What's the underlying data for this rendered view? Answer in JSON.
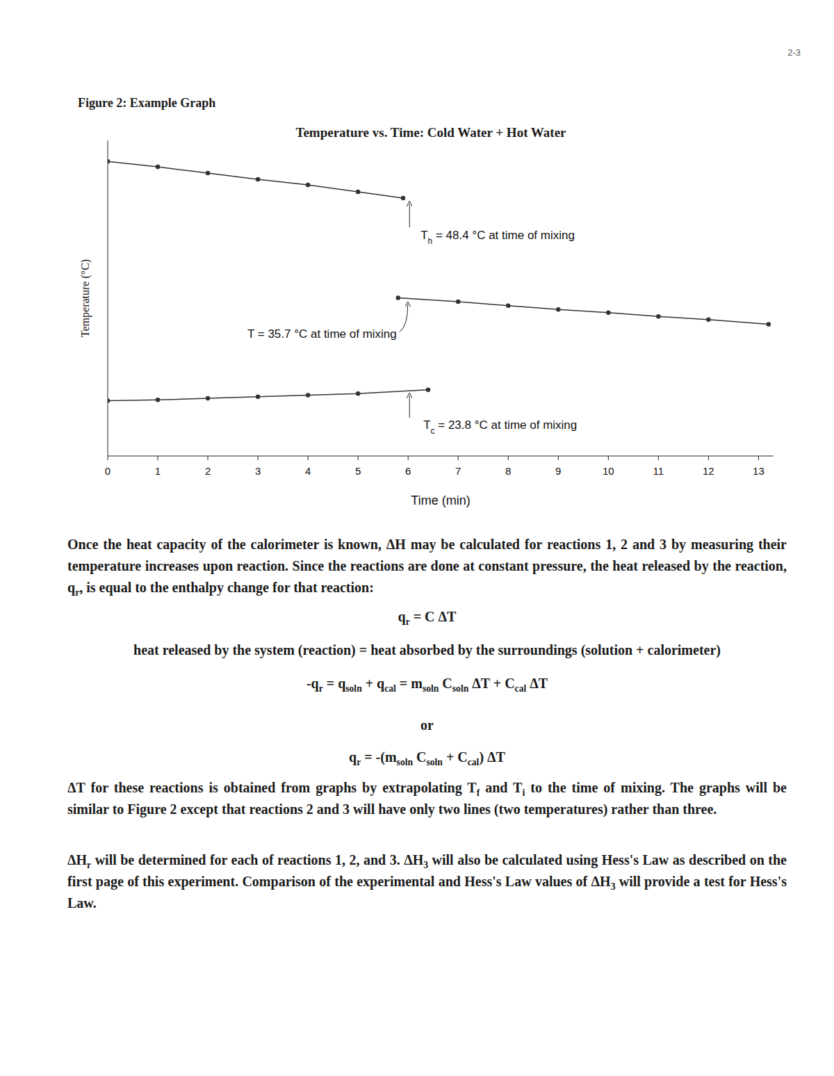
{
  "page_number": "2-3",
  "figure_caption": "Figure 2: Example Graph",
  "chart_data": {
    "type": "line",
    "title": "Temperature vs. Time: Cold Water + Hot Water",
    "x_label": "Time (min)",
    "y_label": "Temperature (°C)",
    "xlim": [
      0,
      13.3
    ],
    "xticks": [
      0,
      1,
      2,
      3,
      4,
      5,
      6,
      7,
      8,
      9,
      10,
      11,
      12,
      13
    ],
    "ylim": [
      15.5,
      56
    ],
    "tick_labels": "x",
    "grid": false,
    "color": "#333333",
    "marker": "circle",
    "series": [
      {
        "x": [
          0,
          1,
          2,
          3,
          4,
          5,
          5.9
        ],
        "values": [
          53.3,
          52.6,
          51.8,
          51.0,
          50.3,
          49.4,
          48.6
        ]
      },
      {
        "x": [
          5.8,
          7,
          8,
          9,
          10,
          11,
          12,
          13.2
        ],
        "values": [
          35.8,
          35.3,
          34.8,
          34.3,
          33.9,
          33.4,
          33.0,
          32.4
        ]
      },
      {
        "x": [
          0,
          1,
          2,
          3,
          4,
          5,
          6.4
        ],
        "values": [
          22.6,
          22.7,
          22.9,
          23.1,
          23.3,
          23.5,
          24.0
        ]
      }
    ],
    "annotations": [
      {
        "text": [
          "T",
          {
            "sub": "h"
          },
          " = 48.4 °C at time of mixing"
        ],
        "x": 6,
        "y": 48.4
      },
      {
        "text": [
          "T = 35.7 °C at time of mixing"
        ],
        "x": 5.8,
        "y": 35.7
      },
      {
        "text": [
          "T",
          {
            "sub": "c"
          },
          " = 23.8 °C at time of mixing"
        ],
        "x": 6,
        "y": 23.8
      }
    ]
  },
  "body": [
    {
      "kind": "paragraph",
      "text": [
        "Once the heat capacity of the calorimeter is known, ΔH may be calculated for reactions 1, 2 and 3 by measuring their temperature increases upon reaction. Since the reactions are done at constant pressure, the heat released by the reaction, q",
        {
          "sub": "r"
        },
        ", is equal to the enthalpy change for that reaction:"
      ]
    },
    {
      "kind": "equation",
      "text": [
        "q",
        {
          "sub": "r"
        },
        " = C ΔT"
      ]
    },
    {
      "kind": "equation",
      "text": [
        "heat released by the system (reaction) = heat absorbed by the surroundings (solution + calorimeter)"
      ]
    },
    {
      "kind": "equation",
      "text": [
        "-q",
        {
          "sub": "r"
        },
        " = q",
        {
          "sub": "soln"
        },
        " + q",
        {
          "sub": "cal"
        },
        " = m",
        {
          "sub": "soln"
        },
        " C",
        {
          "sub": "soln"
        },
        " ΔT + C",
        {
          "sub": "cal"
        },
        " ΔT"
      ]
    },
    {
      "kind": "equation",
      "text": [
        "or"
      ]
    },
    {
      "kind": "equation",
      "text": [
        "q",
        {
          "sub": "r"
        },
        " = -(m",
        {
          "sub": "soln"
        },
        " C",
        {
          "sub": "soln"
        },
        " + C",
        {
          "sub": "cal"
        },
        ") ΔT"
      ]
    },
    {
      "kind": "paragraph",
      "text": [
        "ΔT for these reactions is obtained from graphs by extrapolating T",
        {
          "sub": "f"
        },
        " and T",
        {
          "sub": "i"
        },
        " to the time of mixing. The graphs will be similar to Figure 2 except that reactions 2 and 3 will have only two lines (two temperatures) rather than three."
      ]
    },
    {
      "kind": "paragraph",
      "text": [
        "ΔH",
        {
          "sub": "r"
        },
        " will be determined for each of reactions 1, 2, and 3. ΔH",
        {
          "sub": "3"
        },
        " will also be calculated using Hess's Law as described on the first page of this experiment. Comparison of the experimental and Hess's Law values of ΔH",
        {
          "sub": "3"
        },
        " will provide a test for Hess's Law."
      ]
    }
  ]
}
